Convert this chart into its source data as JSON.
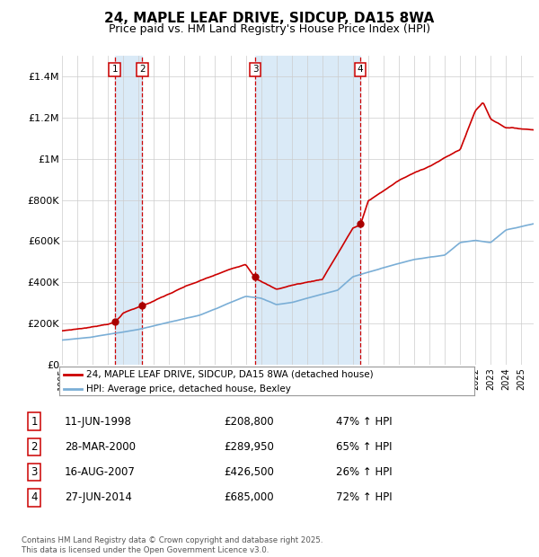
{
  "title": "24, MAPLE LEAF DRIVE, SIDCUP, DA15 8WA",
  "subtitle": "Price paid vs. HM Land Registry's House Price Index (HPI)",
  "title_fontsize": 11,
  "subtitle_fontsize": 9,
  "ylabel_ticks": [
    "£0",
    "£200K",
    "£400K",
    "£600K",
    "£800K",
    "£1M",
    "£1.2M",
    "£1.4M"
  ],
  "ytick_vals": [
    0,
    200000,
    400000,
    600000,
    800000,
    1000000,
    1200000,
    1400000
  ],
  "ylim": [
    0,
    1500000
  ],
  "xlim_start": 1995.0,
  "xlim_end": 2025.8,
  "sale_dates": [
    1998.44,
    2000.24,
    2007.62,
    2014.49
  ],
  "sale_prices": [
    208800,
    289950,
    426500,
    685000
  ],
  "sale_labels": [
    "1",
    "2",
    "3",
    "4"
  ],
  "vline_color": "#cc0000",
  "shade_color": "#daeaf7",
  "red_line_color": "#cc0000",
  "blue_line_color": "#7aaed6",
  "marker_color": "#aa0000",
  "legend_label_red": "24, MAPLE LEAF DRIVE, SIDCUP, DA15 8WA (detached house)",
  "legend_label_blue": "HPI: Average price, detached house, Bexley",
  "table_entries": [
    {
      "num": "1",
      "date": "11-JUN-1998",
      "price": "£208,800",
      "pct": "47% ↑ HPI"
    },
    {
      "num": "2",
      "date": "28-MAR-2000",
      "price": "£289,950",
      "pct": "65% ↑ HPI"
    },
    {
      "num": "3",
      "date": "16-AUG-2007",
      "price": "£426,500",
      "pct": "26% ↑ HPI"
    },
    {
      "num": "4",
      "date": "27-JUN-2014",
      "price": "£685,000",
      "pct": "72% ↑ HPI"
    }
  ],
  "footer": "Contains HM Land Registry data © Crown copyright and database right 2025.\nThis data is licensed under the Open Government Licence v3.0.",
  "background_color": "#ffffff",
  "grid_color": "#cccccc",
  "blue_anchors_t": [
    1995,
    1997,
    2000,
    2004,
    2007,
    2008,
    2009,
    2010,
    2013,
    2014,
    2016,
    2018,
    2020,
    2021,
    2022,
    2023,
    2024,
    2025.8
  ],
  "blue_anchors_v": [
    120000,
    135000,
    170000,
    240000,
    330000,
    320000,
    290000,
    300000,
    360000,
    425000,
    470000,
    510000,
    530000,
    590000,
    600000,
    590000,
    650000,
    680000
  ],
  "red_anchors_t": [
    1995,
    1997,
    1998.44,
    1999,
    2000.24,
    2003,
    2007,
    2007.62,
    2008,
    2009,
    2010,
    2012,
    2014,
    2014.49,
    2015,
    2017,
    2019,
    2021,
    2022,
    2022.5,
    2023,
    2024,
    2025.8
  ],
  "red_anchors_v": [
    165000,
    185000,
    208800,
    255000,
    289950,
    380000,
    490000,
    426500,
    410000,
    370000,
    390000,
    420000,
    670000,
    685000,
    800000,
    900000,
    970000,
    1050000,
    1240000,
    1280000,
    1200000,
    1160000,
    1150000
  ]
}
